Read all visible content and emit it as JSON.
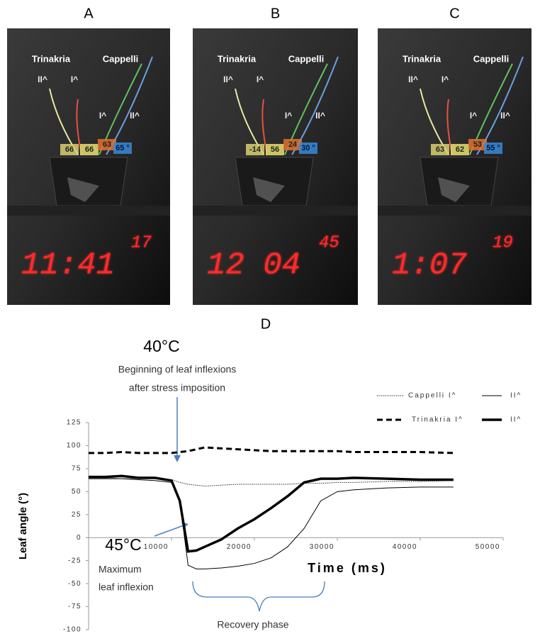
{
  "panels": [
    {
      "label": "A",
      "left_cultivar": "Trinakria",
      "right_cultivar": "Cappelli",
      "leaf_labels": [
        "II^",
        "I^",
        "I^",
        "II^"
      ],
      "angles": [
        "66",
        "66",
        "63",
        "65 °"
      ],
      "clock": "11:41",
      "seconds": "17"
    },
    {
      "label": "B",
      "left_cultivar": "Trinakria",
      "right_cultivar": "Cappelli",
      "leaf_labels": [
        "II^",
        "I^",
        "I^",
        "II^"
      ],
      "angles": [
        "-14",
        "56",
        "24",
        "30 °"
      ],
      "clock": "12 04",
      "seconds": "45"
    },
    {
      "label": "C",
      "left_cultivar": "Trinakria",
      "right_cultivar": "Cappelli",
      "leaf_labels": [
        "II^",
        "I^",
        "I^",
        "II^"
      ],
      "angles": [
        "63",
        "62",
        "53",
        "55 °"
      ],
      "clock": "1:07",
      "seconds": "19"
    }
  ],
  "chart_data": {
    "type": "line",
    "label": "D",
    "y_label": "Leaf angle (°)",
    "x_label": "Time (ms)",
    "top_temp": "40°C",
    "top_note": [
      "Beginning of leaf inflexions",
      "after stress imposition"
    ],
    "bottom_temp": "45°C",
    "bottom_note": [
      "Maximum",
      "leaf inflexion"
    ],
    "recovery_label": "Recovery phase",
    "x": [
      0,
      2000,
      4000,
      6000,
      8000,
      10000,
      11000,
      12000,
      13000,
      14000,
      16000,
      18000,
      20000,
      22000,
      24000,
      26000,
      28000,
      30000,
      32000,
      36000,
      40000,
      44000
    ],
    "series": [
      {
        "name": "Cappelli I^",
        "color": "#000000",
        "style": "dotted",
        "width": 1,
        "values": [
          65,
          65,
          64,
          64,
          64,
          63,
          60,
          58,
          57,
          56,
          57,
          58,
          58,
          58,
          58,
          59,
          59,
          60,
          60,
          61,
          61,
          62
        ]
      },
      {
        "name": "II^",
        "color": "#000000",
        "style": "solid",
        "width": 1,
        "values": [
          64,
          64,
          64,
          63,
          62,
          60,
          40,
          -30,
          -34,
          -34,
          -33,
          -31,
          -28,
          -22,
          -10,
          10,
          40,
          50,
          52,
          54,
          55,
          55
        ]
      },
      {
        "name": "Trinakria I^",
        "color": "#000000",
        "style": "dashed",
        "width": 3,
        "values": [
          92,
          92,
          93,
          92,
          92,
          92,
          93,
          94,
          96,
          98,
          97,
          96,
          95,
          94,
          94,
          94,
          94,
          94,
          93,
          93,
          93,
          92
        ]
      },
      {
        "name": "II^",
        "color": "#000000",
        "style": "solid",
        "width": 3.5,
        "values": [
          66,
          66,
          67,
          65,
          65,
          62,
          40,
          -15,
          -14,
          -10,
          -2,
          10,
          20,
          32,
          45,
          60,
          64,
          64,
          65,
          64,
          63,
          63
        ]
      }
    ],
    "xlim": [
      0,
      50000
    ],
    "xticks": [
      10000,
      20000,
      30000,
      40000,
      50000
    ],
    "ylim": [
      -100,
      125
    ],
    "yticks": [
      -100,
      -75,
      -50,
      -25,
      0,
      25,
      50,
      75,
      100,
      125
    ]
  }
}
